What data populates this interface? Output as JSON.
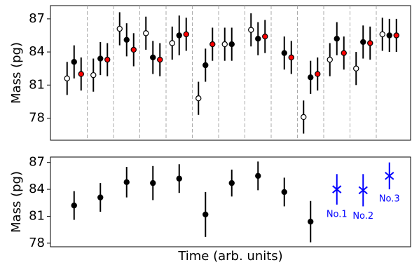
{
  "chart_data": [
    {
      "type": "errorbar",
      "ylabel": "Mass (pg)",
      "ylim": [
        76,
        88.2
      ],
      "yticks": [
        78,
        81,
        84,
        87
      ],
      "separators": true,
      "categories": [
        null,
        null,
        null,
        null,
        null,
        null,
        null,
        null,
        null,
        null,
        null,
        null,
        null
      ],
      "series": [
        {
          "color": "#000000",
          "face": "#ffffff",
          "offset": -10,
          "values": [
            81.6,
            81.9,
            86.1,
            85.7,
            84.8,
            79.8,
            84.7,
            86.0,
            null,
            78.1,
            83.3,
            82.5,
            85.6
          ],
          "errors": [
            1.5,
            1.5,
            1.5,
            1.5,
            1.5,
            1.5,
            1.5,
            1.5,
            null,
            1.5,
            1.5,
            1.5,
            1.5
          ]
        },
        {
          "color": "#000000",
          "face": "#000000",
          "offset": 0,
          "values": [
            83.1,
            83.4,
            85.1,
            83.5,
            85.5,
            82.8,
            84.7,
            85.2,
            83.9,
            81.7,
            85.2,
            84.9,
            85.5
          ],
          "errors": [
            1.5,
            1.5,
            1.5,
            1.5,
            1.8,
            1.5,
            1.5,
            1.5,
            1.5,
            1.5,
            1.5,
            1.5,
            1.5
          ]
        },
        {
          "color": "#000000",
          "face": "#ff0000",
          "offset": 10,
          "values": [
            82.0,
            83.3,
            84.2,
            83.3,
            85.6,
            84.7,
            null,
            85.4,
            83.5,
            82.0,
            83.9,
            84.8,
            85.5
          ],
          "errors": [
            1.5,
            1.5,
            1.5,
            1.5,
            1.5,
            1.5,
            null,
            1.5,
            1.5,
            1.5,
            1.5,
            1.5,
            1.5
          ]
        }
      ]
    },
    {
      "type": "errorbar",
      "ylabel": "Mass (pg)",
      "xlabel": "Time (arb. units)",
      "ylim": [
        77.6,
        87.6
      ],
      "yticks": [
        78,
        81,
        84,
        87
      ],
      "separators": false,
      "categories": [
        null,
        null,
        null,
        null,
        null,
        null,
        null,
        null,
        null,
        null,
        null,
        null,
        null
      ],
      "series": [
        {
          "color": "#000000",
          "face": "#000000",
          "offset": 0,
          "marker": "circle",
          "values": [
            82.2,
            83.1,
            84.8,
            84.7,
            85.2,
            81.2,
            84.7,
            85.5,
            83.7,
            80.4,
            null,
            null,
            null
          ],
          "errors": [
            1.6,
            1.6,
            1.7,
            1.9,
            1.6,
            2.5,
            1.5,
            1.6,
            1.6,
            2.3,
            null,
            null,
            null
          ]
        },
        {
          "color": "#0000ff",
          "face": "#0000ff",
          "offset": 0,
          "marker": "x",
          "values": [
            null,
            null,
            null,
            null,
            null,
            null,
            null,
            null,
            null,
            null,
            84.0,
            83.9,
            85.5
          ],
          "errors": [
            null,
            null,
            null,
            null,
            null,
            null,
            null,
            null,
            null,
            null,
            1.7,
            1.8,
            1.5
          ],
          "labels": [
            null,
            null,
            null,
            null,
            null,
            null,
            null,
            null,
            null,
            null,
            "No.1",
            "No.2",
            "No.3"
          ]
        }
      ]
    }
  ]
}
